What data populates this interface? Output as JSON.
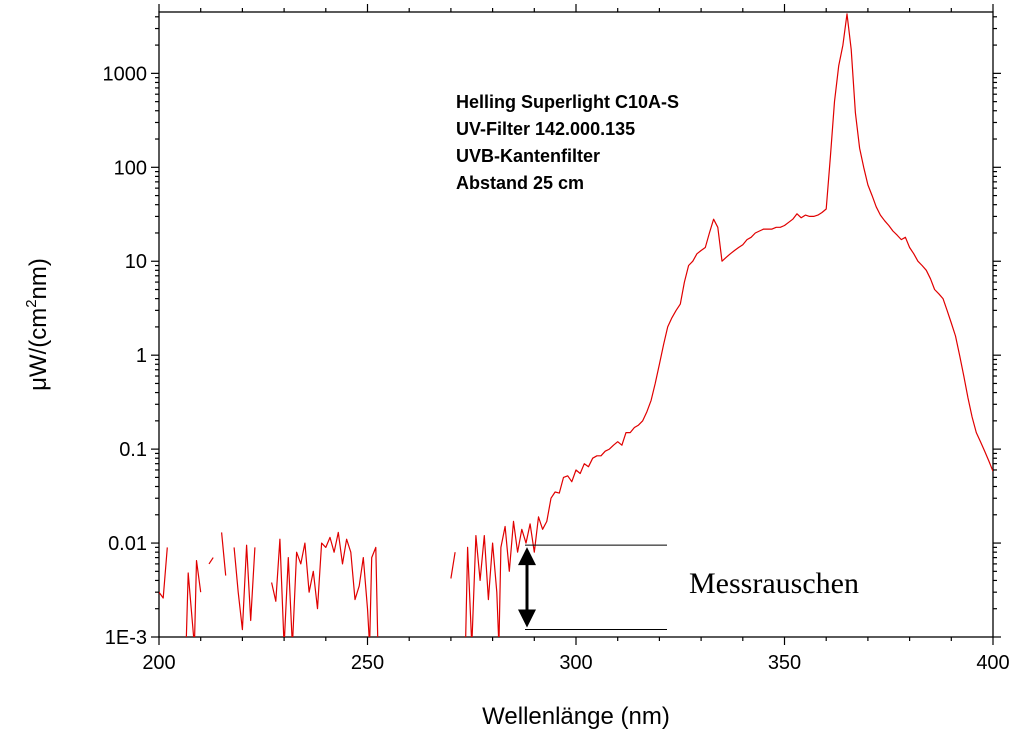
{
  "chart_data": {
    "type": "line",
    "xlabel": "Wellenlänge (nm)",
    "ylabel_parts": [
      "μW/(cm",
      "2",
      "nm)"
    ],
    "xlim": [
      200,
      400
    ],
    "ylim": [
      0.001,
      4500
    ],
    "yscale": "log",
    "x_ticks": [
      200,
      250,
      300,
      350,
      400
    ],
    "x_tick_labels": [
      "200",
      "250",
      "300",
      "350",
      "400"
    ],
    "y_ticks": [
      0.001,
      0.01,
      0.1,
      1,
      10,
      100,
      1000
    ],
    "y_tick_labels": [
      "1E-3",
      "0.01",
      "0.1",
      "1",
      "10",
      "100",
      "1000"
    ],
    "grid": false,
    "annotation_lines": [
      "Helling Superlight C10A-S",
      "UV-Filter 142.000.135",
      "UVB-Kantenfilter",
      "Abstand 25 cm"
    ],
    "noise_label": "Messrauschen",
    "noise_range": [
      0.0012,
      0.0095
    ],
    "line_color": "#e00000",
    "series": [
      {
        "segments": [
          [
            [
              200,
              0.003
            ],
            [
              201,
              0.0026
            ],
            [
              202,
              0.009
            ]
          ],
          [
            [
              206.5,
              0.0008
            ],
            [
              207,
              0.0048
            ],
            [
              208.5,
              0.0008
            ],
            [
              209,
              0.0065
            ],
            [
              210,
              0.003
            ]
          ],
          [
            [
              212,
              0.006
            ],
            [
              213,
              0.007
            ]
          ],
          [
            [
              215,
              0.013
            ],
            [
              216,
              0.0045
            ]
          ],
          [
            [
              218,
              0.009
            ],
            [
              219,
              0.003
            ],
            [
              220,
              0.0012
            ],
            [
              221,
              0.0095
            ],
            [
              222,
              0.0015
            ],
            [
              223,
              0.009
            ]
          ],
          [
            [
              227,
              0.0038
            ],
            [
              228,
              0.0024
            ],
            [
              229,
              0.011
            ],
            [
              230,
              0.0008
            ],
            [
              231,
              0.007
            ],
            [
              232,
              0.0008
            ],
            [
              233,
              0.008
            ],
            [
              234,
              0.006
            ],
            [
              235,
              0.01
            ],
            [
              236,
              0.003
            ],
            [
              237,
              0.005
            ],
            [
              238,
              0.002
            ],
            [
              239,
              0.01
            ],
            [
              240,
              0.009
            ],
            [
              241,
              0.0115
            ],
            [
              242,
              0.008
            ],
            [
              243,
              0.013
            ],
            [
              244,
              0.006
            ],
            [
              245,
              0.011
            ],
            [
              246,
              0.008
            ],
            [
              247,
              0.0025
            ],
            [
              248,
              0.0035
            ],
            [
              249,
              0.007
            ],
            [
              250,
              0.002
            ],
            [
              250.5,
              0.0008
            ],
            [
              251,
              0.007
            ],
            [
              252,
              0.009
            ],
            [
              252.5,
              0.0008
            ]
          ],
          [
            [
              270,
              0.0042
            ],
            [
              271,
              0.008
            ]
          ],
          [
            [
              273.5,
              0.0008
            ],
            [
              274,
              0.009
            ],
            [
              275,
              0.0008
            ],
            [
              276,
              0.012
            ],
            [
              277,
              0.004
            ],
            [
              278,
              0.012
            ],
            [
              279,
              0.0025
            ],
            [
              280,
              0.01
            ],
            [
              281,
              0.003
            ],
            [
              281.5,
              0.0008
            ],
            [
              282,
              0.009
            ],
            [
              283,
              0.015
            ],
            [
              284,
              0.005
            ],
            [
              285,
              0.017
            ],
            [
              286,
              0.008
            ],
            [
              287,
              0.014
            ],
            [
              288,
              0.01
            ],
            [
              289,
              0.016
            ],
            [
              290,
              0.008
            ],
            [
              291,
              0.019
            ],
            [
              292,
              0.014
            ],
            [
              293,
              0.017
            ],
            [
              294,
              0.03
            ],
            [
              295,
              0.035
            ],
            [
              296,
              0.034
            ],
            [
              297,
              0.05
            ],
            [
              298,
              0.052
            ],
            [
              299,
              0.045
            ],
            [
              300,
              0.06
            ],
            [
              301,
              0.055
            ],
            [
              302,
              0.07
            ],
            [
              303,
              0.065
            ],
            [
              304,
              0.08
            ],
            [
              305,
              0.085
            ],
            [
              306,
              0.085
            ],
            [
              307,
              0.095
            ],
            [
              308,
              0.1
            ],
            [
              309,
              0.11
            ],
            [
              310,
              0.12
            ],
            [
              311,
              0.11
            ],
            [
              312,
              0.15
            ],
            [
              313,
              0.15
            ],
            [
              314,
              0.17
            ],
            [
              315,
              0.18
            ],
            [
              316,
              0.2
            ],
            [
              317,
              0.25
            ],
            [
              318,
              0.33
            ],
            [
              319,
              0.5
            ],
            [
              320,
              0.8
            ],
            [
              321,
              1.3
            ],
            [
              322,
              2.0
            ],
            [
              323,
              2.5
            ],
            [
              324,
              3.0
            ],
            [
              325,
              3.5
            ],
            [
              326,
              6.0
            ],
            [
              327,
              9.0
            ],
            [
              328,
              10
            ],
            [
              329,
              12
            ],
            [
              330,
              13
            ],
            [
              331,
              14
            ],
            [
              332,
              20
            ],
            [
              333,
              28
            ],
            [
              334,
              23
            ],
            [
              335,
              10
            ],
            [
              336,
              11
            ],
            [
              337,
              12
            ],
            [
              338,
              13
            ],
            [
              339,
              14
            ],
            [
              340,
              15
            ],
            [
              341,
              17
            ],
            [
              342,
              18
            ],
            [
              343,
              20
            ],
            [
              344,
              21
            ],
            [
              345,
              22
            ],
            [
              346,
              22
            ],
            [
              347,
              22
            ],
            [
              348,
              23
            ],
            [
              349,
              23
            ],
            [
              350,
              24
            ],
            [
              351,
              26
            ],
            [
              352,
              28
            ],
            [
              353,
              32
            ],
            [
              354,
              29
            ],
            [
              355,
              31
            ],
            [
              356,
              30
            ],
            [
              357,
              30
            ],
            [
              358,
              31
            ],
            [
              359,
              33
            ],
            [
              360,
              36
            ],
            [
              361,
              130
            ],
            [
              362,
              500
            ],
            [
              363,
              1200
            ],
            [
              364,
              2000
            ],
            [
              365,
              4300
            ],
            [
              366,
              1800
            ],
            [
              367,
              380
            ],
            [
              368,
              160
            ],
            [
              369,
              100
            ],
            [
              370,
              65
            ],
            [
              371,
              50
            ],
            [
              372,
              38
            ],
            [
              373,
              31
            ],
            [
              374,
              27
            ],
            [
              375,
              24
            ],
            [
              376,
              21
            ],
            [
              377,
              19
            ],
            [
              378,
              17
            ],
            [
              379,
              18
            ],
            [
              380,
              14
            ],
            [
              381,
              12
            ],
            [
              382,
              10
            ],
            [
              383,
              9
            ],
            [
              384,
              8
            ],
            [
              385,
              6.5
            ],
            [
              386,
              5
            ],
            [
              387,
              4.5
            ],
            [
              388,
              4
            ],
            [
              389,
              3
            ],
            [
              390,
              2.2
            ],
            [
              391,
              1.6
            ],
            [
              392,
              1.0
            ],
            [
              393,
              0.6
            ],
            [
              394,
              0.35
            ],
            [
              395,
              0.22
            ],
            [
              396,
              0.15
            ],
            [
              397,
              0.12
            ],
            [
              398,
              0.095
            ],
            [
              399,
              0.075
            ],
            [
              400,
              0.058
            ]
          ]
        ]
      }
    ]
  }
}
